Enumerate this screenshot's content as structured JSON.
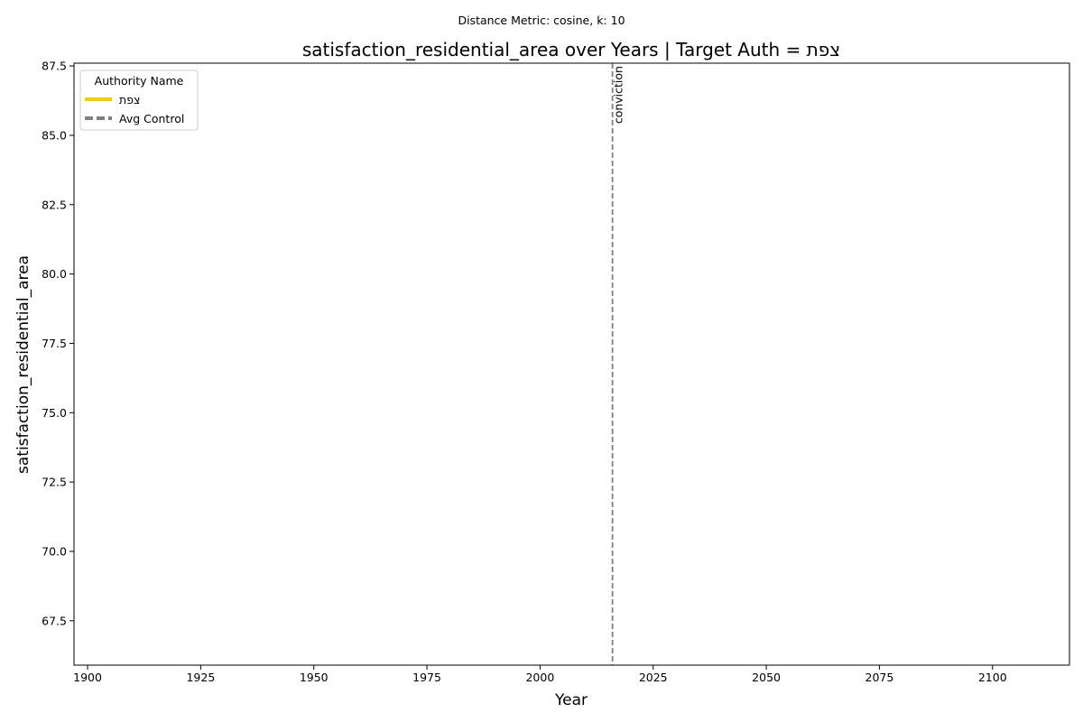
{
  "chart_data": {
    "type": "line",
    "suptitle": "Distance Metric: cosine, k: 10",
    "title": "satisfaction_residential_area over Years | Target Auth = צפת",
    "xlabel": "Year",
    "ylabel": "satisfaction_residential_area",
    "xlim": [
      1897,
      2117
    ],
    "ylim": [
      65.9,
      87.6
    ],
    "x_ticks": [
      1900,
      1925,
      1950,
      1975,
      2000,
      2025,
      2050,
      2075,
      2100
    ],
    "y_ticks": [
      67.5,
      70.0,
      72.5,
      75.0,
      77.5,
      80.0,
      82.5,
      85.0,
      87.5
    ],
    "grid": false,
    "legend": {
      "title": "Authority Name",
      "placement": "top-left",
      "entries": [
        {
          "label": "צפת",
          "color": "#f2c81f",
          "style": "solid"
        },
        {
          "label": "Avg Control",
          "color": "#808080",
          "style": "dashed"
        }
      ]
    },
    "series": [
      {
        "name": "צפת",
        "color": "#f2c81f",
        "x": [],
        "values": []
      },
      {
        "name": "Avg Control",
        "color": "#808080",
        "x": [],
        "values": []
      }
    ],
    "annotations": [
      {
        "type": "vline",
        "x": 2016,
        "label": "conviction",
        "color": "#808080",
        "style": "dashed"
      }
    ]
  }
}
